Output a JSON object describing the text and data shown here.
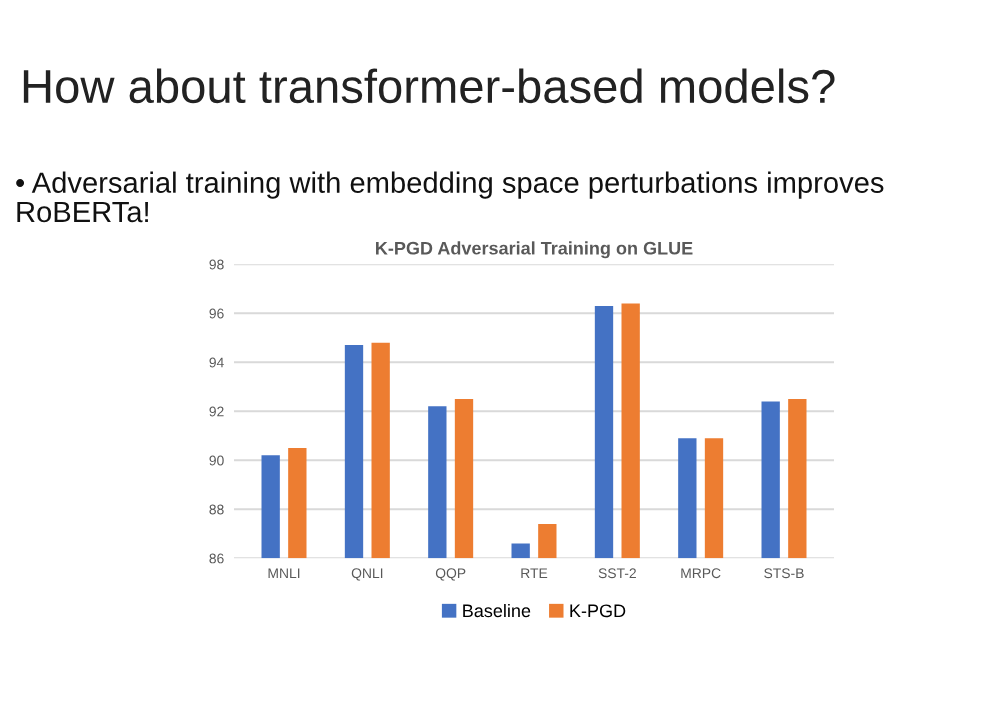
{
  "chart_data": {
    "type": "bar",
    "title": "How about transformer-based models?",
    "subtitle": "• Adversarial training with embedding space perturbations improves\nRoBERTa!",
    "annotations": [
      "K-PGD Adversarial Training on GLUE"
    ],
    "categories": [
      "MNLI",
      "QNLI",
      "QQP",
      "RTE",
      "SST-2",
      "MRPC",
      "STS-B"
    ],
    "series": [
      {
        "name": "Baseline",
        "color": "#4472c4",
        "values": [
          90.2,
          94.7,
          92.2,
          86.6,
          96.3,
          90.9,
          92.4
        ]
      },
      {
        "name": "K-PGD",
        "color": "#ed7d31",
        "values": [
          90.5,
          94.8,
          92.5,
          87.4,
          96.4,
          90.9,
          92.5
        ]
      }
    ],
    "ylim": [
      86,
      98
    ],
    "yticks": [
      86,
      88,
      90,
      92,
      94,
      96,
      98
    ],
    "grid": "y",
    "legend": "bottom"
  }
}
